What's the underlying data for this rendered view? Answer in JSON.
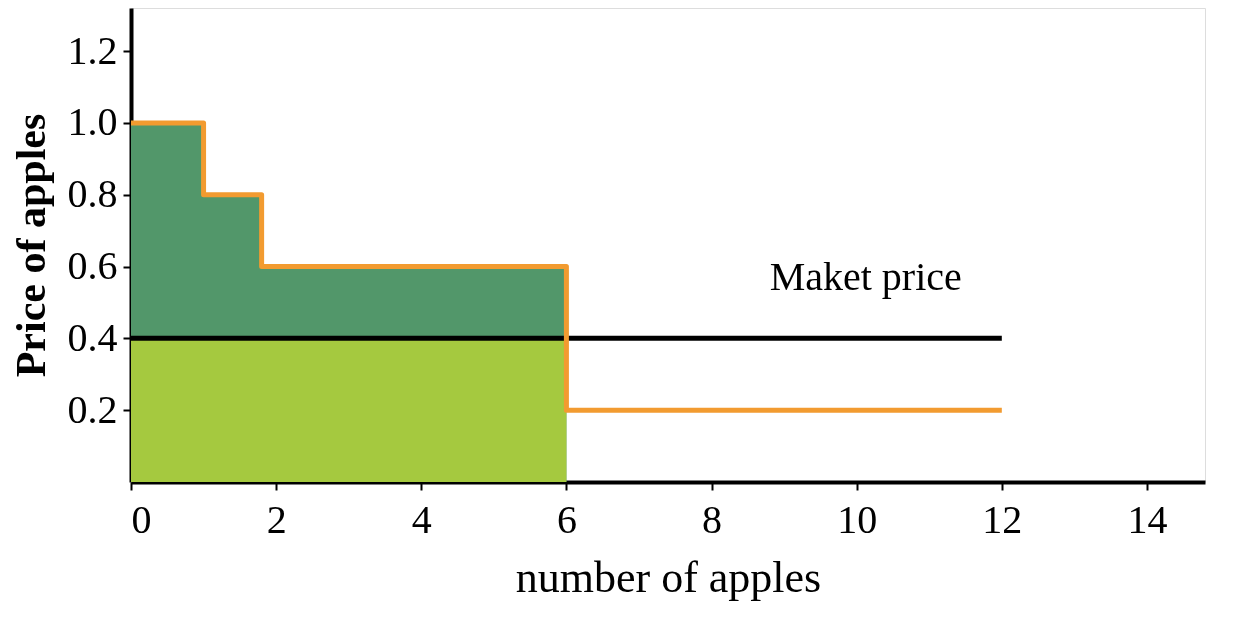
{
  "chart_data": {
    "type": "step",
    "xlabel": "number of apples",
    "ylabel": "Price  of apples",
    "xlim": [
      0,
      14.8
    ],
    "ylim": [
      0,
      1.32
    ],
    "xticks": [
      0,
      2,
      4,
      6,
      8,
      10,
      12,
      14
    ],
    "yticks": [
      {
        "value": 0.2,
        "label": "0.2"
      },
      {
        "value": 0.4,
        "label": "0.4"
      },
      {
        "value": 0.6,
        "label": "0.6"
      },
      {
        "value": 0.8,
        "label": "0.8"
      },
      {
        "value": 1.0,
        "label": "1.0"
      },
      {
        "value": 1.2,
        "label": "1.2"
      }
    ],
    "grid": false,
    "legend": false,
    "series": [
      {
        "type": "area",
        "color": "#52976a",
        "x": [
          0,
          1,
          1,
          1.8,
          1.8,
          6
        ],
        "values": [
          1.0,
          1.0,
          0.8,
          0.8,
          0.6,
          0.6
        ]
      },
      {
        "type": "area",
        "color": "#a5c93f",
        "x": [
          0,
          6
        ],
        "values": [
          0.4,
          0.4
        ]
      },
      {
        "type": "line",
        "name": "Maket price",
        "color": "#000000",
        "x": [
          0,
          12
        ],
        "values": [
          0.4,
          0.4
        ]
      },
      {
        "color": "#f29b30",
        "x": [
          0,
          1,
          1.8,
          6,
          12
        ],
        "values": [
          1.0,
          0.8,
          0.6,
          0.2,
          0.2
        ]
      }
    ]
  }
}
